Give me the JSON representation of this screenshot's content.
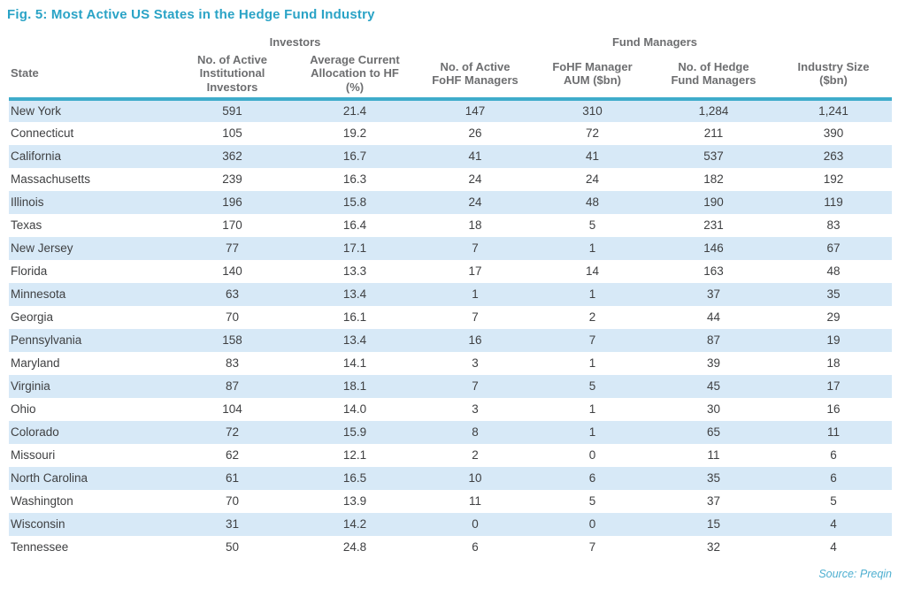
{
  "figure": {
    "title": "Fig. 5: Most Active US States in the Hedge Fund Industry",
    "source": "Source: Preqin"
  },
  "colors": {
    "title": "#2AA3C6",
    "header_rule": "#3FACCB",
    "row_stripe": "#D7E9F7",
    "header_text": "#6D6E70",
    "body_text": "#3F4042",
    "source_text": "#4EAFD0"
  },
  "chart_data": {
    "type": "table",
    "column_groups": [
      {
        "label": "",
        "span": 1
      },
      {
        "label": "Investors",
        "span": 2
      },
      {
        "label": "Fund Managers",
        "span": 4
      }
    ],
    "columns": [
      "State",
      "No. of Active\nInstitutional\nInvestors",
      "Average Current\nAllocation to HF\n(%)",
      "No. of Active\nFoHF Managers",
      "FoHF Manager\nAUM ($bn)",
      "No. of Hedge\nFund Managers",
      "Industry Size\n($bn)"
    ],
    "rows": [
      [
        "New York",
        "591",
        "21.4",
        "147",
        "310",
        "1,284",
        "1,241"
      ],
      [
        "Connecticut",
        "105",
        "19.2",
        "26",
        "72",
        "211",
        "390"
      ],
      [
        "California",
        "362",
        "16.7",
        "41",
        "41",
        "537",
        "263"
      ],
      [
        "Massachusetts",
        "239",
        "16.3",
        "24",
        "24",
        "182",
        "192"
      ],
      [
        "Illinois",
        "196",
        "15.8",
        "24",
        "48",
        "190",
        "119"
      ],
      [
        "Texas",
        "170",
        "16.4",
        "18",
        "5",
        "231",
        "83"
      ],
      [
        "New Jersey",
        "77",
        "17.1",
        "7",
        "1",
        "146",
        "67"
      ],
      [
        "Florida",
        "140",
        "13.3",
        "17",
        "14",
        "163",
        "48"
      ],
      [
        "Minnesota",
        "63",
        "13.4",
        "1",
        "1",
        "37",
        "35"
      ],
      [
        "Georgia",
        "70",
        "16.1",
        "7",
        "2",
        "44",
        "29"
      ],
      [
        "Pennsylvania",
        "158",
        "13.4",
        "16",
        "7",
        "87",
        "19"
      ],
      [
        "Maryland",
        "83",
        "14.1",
        "3",
        "1",
        "39",
        "18"
      ],
      [
        "Virginia",
        "87",
        "18.1",
        "7",
        "5",
        "45",
        "17"
      ],
      [
        "Ohio",
        "104",
        "14.0",
        "3",
        "1",
        "30",
        "16"
      ],
      [
        "Colorado",
        "72",
        "15.9",
        "8",
        "1",
        "65",
        "11"
      ],
      [
        "Missouri",
        "62",
        "12.1",
        "2",
        "0",
        "11",
        "6"
      ],
      [
        "North Carolina",
        "61",
        "16.5",
        "10",
        "6",
        "35",
        "6"
      ],
      [
        "Washington",
        "70",
        "13.9",
        "11",
        "5",
        "37",
        "5"
      ],
      [
        "Wisconsin",
        "31",
        "14.2",
        "0",
        "0",
        "15",
        "4"
      ],
      [
        "Tennessee",
        "50",
        "24.8",
        "6",
        "7",
        "32",
        "4"
      ]
    ]
  }
}
